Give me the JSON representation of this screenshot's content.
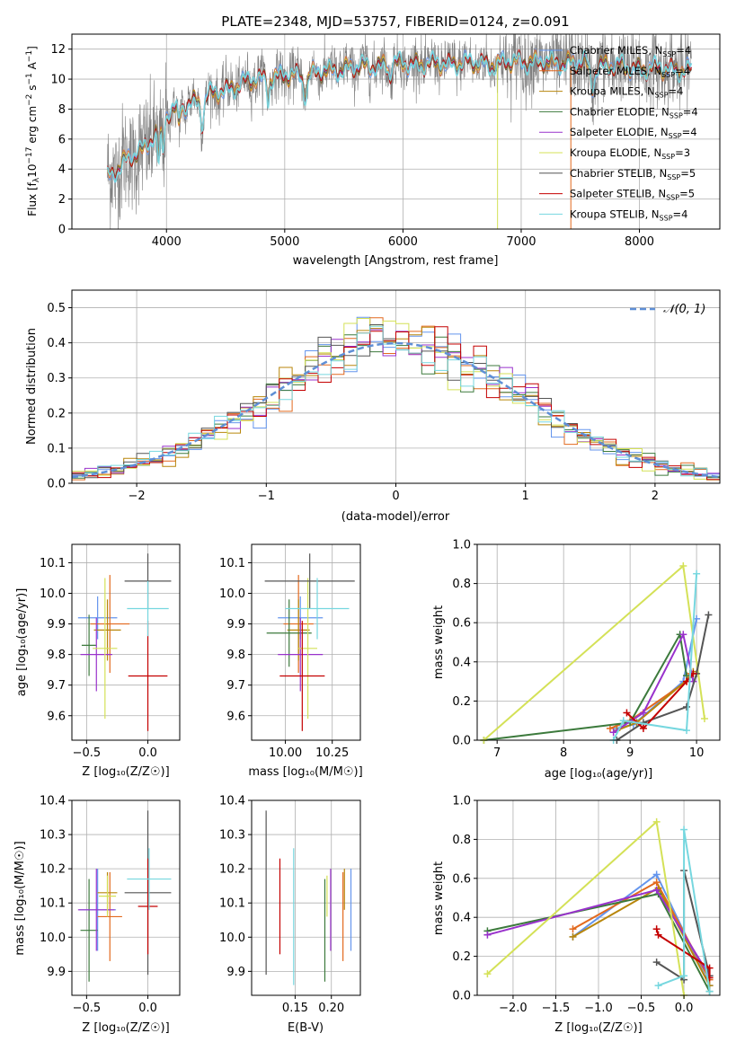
{
  "colors": [
    "#6495ed",
    "#e2691e",
    "#b8860b",
    "#3c7a3c",
    "#9932cc",
    "#d4e157",
    "#555555",
    "#c40000",
    "#76d7df"
  ],
  "gauss_color": "#5f8fd6",
  "chart_data": [
    {
      "id": "spectrum",
      "type": "line",
      "title": "PLATE=2348, MJD=53757, FIBERID=0124, z=0.091",
      "xlabel": "wavelength [Angstrom, rest frame]",
      "ylabel_parts": [
        "Flux [f",
        "λ",
        "10",
        "−17",
        " erg cm",
        "−2",
        " s",
        "−1",
        " A",
        "−1",
        "]"
      ],
      "xlim": [
        3200,
        8680
      ],
      "ylim": [
        0,
        13
      ],
      "xticks": [
        4000,
        5000,
        6000,
        7000,
        8000
      ],
      "yticks": [
        0,
        2,
        4,
        6,
        8,
        10,
        12
      ],
      "continuum": [
        [
          3500,
          3.4
        ],
        [
          3650,
          4.6
        ],
        [
          3800,
          5.2
        ],
        [
          4000,
          7.6
        ],
        [
          4250,
          8.6
        ],
        [
          4500,
          9.3
        ],
        [
          4750,
          10.0
        ],
        [
          5000,
          10.2
        ],
        [
          5250,
          10.4
        ],
        [
          5500,
          10.7
        ],
        [
          5750,
          10.9
        ],
        [
          6000,
          11.0
        ],
        [
          6250,
          11.0
        ],
        [
          6500,
          11.1
        ],
        [
          6750,
          11.0
        ],
        [
          7000,
          11.2
        ],
        [
          7250,
          11.1
        ],
        [
          7500,
          11.1
        ],
        [
          7750,
          10.9
        ],
        [
          8000,
          10.7
        ],
        [
          8250,
          10.7
        ],
        [
          8440,
          10.6
        ]
      ],
      "legend": [
        {
          "name": "Chabrier MILES",
          "nssp": "4"
        },
        {
          "name": "Salpeter MILES",
          "nssp": "4"
        },
        {
          "name": "Kroupa MILES",
          "nssp": "4"
        },
        {
          "name": "Chabrier ELODIE",
          "nssp": "4"
        },
        {
          "name": "Salpeter ELODIE",
          "nssp": "4"
        },
        {
          "name": "Kroupa ELODIE",
          "nssp": "3"
        },
        {
          "name": "Chabrier STELIB",
          "nssp": "5"
        },
        {
          "name": "Salpeter STELIB",
          "nssp": "5"
        },
        {
          "name": "Kroupa STELIB",
          "nssp": "4"
        }
      ]
    },
    {
      "id": "residuals",
      "type": "histogram",
      "xlabel": "(data-model)/error",
      "ylabel": "Normed distribution",
      "xlim": [
        -2.5,
        2.5
      ],
      "ylim": [
        0,
        0.55
      ],
      "xticks": [
        -2,
        -1,
        0,
        1,
        2
      ],
      "yticks": [
        0.0,
        0.1,
        0.2,
        0.3,
        0.4,
        0.5
      ],
      "bin_width": 0.1,
      "legend": "𝒩(0, 1)"
    },
    {
      "id": "z_age",
      "type": "errorbar",
      "xlabel": "Z [log₁₀(Z/Z☉)]",
      "ylabel": "age  [log₁₀(age/yr)]",
      "xlim": [
        -0.62,
        0.26
      ],
      "ylim": [
        9.52,
        10.16
      ],
      "xticks": [
        -0.5,
        0.0
      ],
      "yticks": [
        9.6,
        9.7,
        9.8,
        9.9,
        10.0,
        10.1
      ],
      "points": [
        {
          "x": -0.41,
          "xerr": 0.16,
          "y": 9.92,
          "yerr": 0.07
        },
        {
          "x": -0.31,
          "xerr": 0.16,
          "y": 9.9,
          "yerr": 0.16
        },
        {
          "x": -0.33,
          "xerr": 0.11,
          "y": 9.88,
          "yerr": 0.1
        },
        {
          "x": -0.48,
          "xerr": 0.06,
          "y": 9.83,
          "yerr": 0.1
        },
        {
          "x": -0.42,
          "xerr": 0.13,
          "y": 9.8,
          "yerr": 0.12
        },
        {
          "x": -0.35,
          "xerr": 0.1,
          "y": 9.82,
          "yerr": 0.23
        },
        {
          "x": 0.0,
          "xerr": 0.19,
          "y": 10.04,
          "yerr": 0.09
        },
        {
          "x": 0.0,
          "xerr": 0.16,
          "y": 9.73,
          "yerr": 0.18
        },
        {
          "x": 0.0,
          "xerr": 0.17,
          "y": 9.95,
          "yerr": 0.09
        }
      ]
    },
    {
      "id": "mass_age",
      "type": "errorbar",
      "xlabel": "mass [log₁₀(M/M☉)]",
      "ylabel": "",
      "xlim": [
        9.82,
        10.4
      ],
      "ylim": [
        9.52,
        10.16
      ],
      "xticks": [
        10.0,
        10.25
      ],
      "yticks": [
        9.6,
        9.7,
        9.8,
        9.9,
        10.0,
        10.1
      ],
      "points": [
        {
          "x": 10.08,
          "xerr": 0.12,
          "y": 9.92,
          "yerr": 0.07
        },
        {
          "x": 10.07,
          "xerr": 0.08,
          "y": 9.9,
          "yerr": 0.16
        },
        {
          "x": 10.07,
          "xerr": 0.06,
          "y": 9.88,
          "yerr": 0.1
        },
        {
          "x": 10.02,
          "xerr": 0.12,
          "y": 9.87,
          "yerr": 0.11
        },
        {
          "x": 10.08,
          "xerr": 0.12,
          "y": 9.8,
          "yerr": 0.12
        },
        {
          "x": 10.12,
          "xerr": 0.05,
          "y": 9.82,
          "yerr": 0.23
        },
        {
          "x": 10.13,
          "xerr": 0.24,
          "y": 10.04,
          "yerr": 0.09
        },
        {
          "x": 10.09,
          "xerr": 0.12,
          "y": 9.73,
          "yerr": 0.18
        },
        {
          "x": 10.17,
          "xerr": 0.17,
          "y": 9.95,
          "yerr": 0.1
        }
      ]
    },
    {
      "id": "age_weight",
      "type": "line",
      "xlabel": "age  [log₁₀(age/yr)]",
      "ylabel": "mass weight",
      "xlim": [
        6.7,
        10.35
      ],
      "ylim": [
        0,
        1
      ],
      "xticks": [
        7,
        8,
        9,
        10
      ],
      "yticks": [
        0.0,
        0.2,
        0.4,
        0.6,
        0.8,
        1.0
      ],
      "series": [
        {
          "x": [
            8.8,
            9.05,
            9.8,
            10.0
          ],
          "y": [
            0.06,
            0.08,
            0.3,
            0.62
          ]
        },
        {
          "x": [
            8.7,
            9.0,
            9.85,
            9.9
          ],
          "y": [
            0.06,
            0.1,
            0.3,
            0.34
          ]
        },
        {
          "x": [
            8.8,
            9.1,
            9.9,
            9.95
          ],
          "y": [
            0.05,
            0.09,
            0.32,
            0.35
          ]
        },
        {
          "x": [
            6.8,
            9.0,
            9.75,
            9.85
          ],
          "y": [
            0.0,
            0.09,
            0.54,
            0.33
          ]
        },
        {
          "x": [
            8.75,
            9.2,
            9.8,
            9.95
          ],
          "y": [
            0.04,
            0.14,
            0.54,
            0.3
          ]
        },
        {
          "x": [
            6.8,
            9.8,
            10.12
          ],
          "y": [
            0.0,
            0.89,
            0.11
          ]
        },
        {
          "x": [
            8.8,
            9.2,
            9.85,
            10.0,
            10.18
          ],
          "y": [
            0.0,
            0.09,
            0.17,
            0.34,
            0.64
          ]
        },
        {
          "x": [
            8.95,
            9.2,
            9.85,
            9.95
          ],
          "y": [
            0.14,
            0.06,
            0.3,
            0.34
          ]
        },
        {
          "x": [
            8.75,
            8.9,
            9.85,
            10.0
          ],
          "y": [
            0.0,
            0.1,
            0.05,
            0.85
          ]
        }
      ]
    },
    {
      "id": "z_mass",
      "type": "errorbar",
      "xlabel": "Z [log₁₀(Z/Z☉)]",
      "ylabel": "mass [log₁₀(M/M☉)]",
      "xlim": [
        -0.62,
        0.26
      ],
      "ylim": [
        9.83,
        10.4
      ],
      "xticks": [
        -0.5,
        0.0
      ],
      "yticks": [
        9.9,
        10.0,
        10.1,
        10.2,
        10.3,
        10.4
      ],
      "points": [
        {
          "x": -0.41,
          "xerr": 0.15,
          "y": 10.08,
          "yerr": 0.12
        },
        {
          "x": -0.31,
          "xerr": 0.1,
          "y": 10.06,
          "yerr": 0.13
        },
        {
          "x": -0.33,
          "xerr": 0.08,
          "y": 10.13,
          "yerr": 0.06
        },
        {
          "x": -0.48,
          "xerr": 0.07,
          "y": 10.02,
          "yerr": 0.15
        },
        {
          "x": -0.42,
          "xerr": 0.15,
          "y": 10.08,
          "yerr": 0.12
        },
        {
          "x": -0.33,
          "xerr": 0.07,
          "y": 10.12,
          "yerr": 0.06
        },
        {
          "x": 0.0,
          "xerr": 0.19,
          "y": 10.13,
          "yerr": 0.24
        },
        {
          "x": 0.0,
          "xerr": 0.08,
          "y": 10.09,
          "yerr": 0.14
        },
        {
          "x": 0.01,
          "xerr": 0.18,
          "y": 10.17,
          "yerr": 0.09
        }
      ]
    },
    {
      "id": "ebv_mass",
      "type": "errorbar",
      "xlabel": "E(B-V)",
      "ylabel": "",
      "xlim": [
        0.09,
        0.24
      ],
      "ylim": [
        9.83,
        10.4
      ],
      "xticks": [
        0.15,
        0.2
      ],
      "yticks": [
        9.9,
        10.0,
        10.1,
        10.2,
        10.3,
        10.4
      ],
      "points": [
        {
          "x": 0.227,
          "xerr": 0,
          "y": 10.08,
          "yerr": 0.12
        },
        {
          "x": 0.216,
          "xerr": 0,
          "y": 10.06,
          "yerr": 0.13
        },
        {
          "x": 0.218,
          "xerr": 0,
          "y": 10.14,
          "yerr": 0.06
        },
        {
          "x": 0.191,
          "xerr": 0,
          "y": 10.02,
          "yerr": 0.15
        },
        {
          "x": 0.199,
          "xerr": 0,
          "y": 10.08,
          "yerr": 0.12
        },
        {
          "x": 0.194,
          "xerr": 0,
          "y": 10.12,
          "yerr": 0.06
        },
        {
          "x": 0.11,
          "xerr": 0,
          "y": 10.13,
          "yerr": 0.24
        },
        {
          "x": 0.129,
          "xerr": 0,
          "y": 10.09,
          "yerr": 0.14
        },
        {
          "x": 0.148,
          "xerr": 0,
          "y": 10.06,
          "yerr": 0.2
        }
      ]
    },
    {
      "id": "z_weight",
      "type": "line",
      "xlabel": "Z [log₁₀(Z/Z☉)]",
      "ylabel": "mass weight",
      "xlim": [
        -2.42,
        0.42
      ],
      "ylim": [
        0,
        1
      ],
      "xticks": [
        -2.0,
        -1.5,
        -1.0,
        -0.5,
        0.0
      ],
      "yticks": [
        0.0,
        0.2,
        0.4,
        0.6,
        0.8,
        1.0
      ],
      "series": [
        {
          "x": [
            -1.3,
            -0.32,
            0.3
          ],
          "y": [
            0.3,
            0.62,
            0.05
          ]
        },
        {
          "x": [
            -1.3,
            -0.32,
            0.3
          ],
          "y": [
            0.34,
            0.58,
            0.08
          ]
        },
        {
          "x": [
            -1.3,
            -0.3,
            0.3
          ],
          "y": [
            0.3,
            0.55,
            0.05
          ]
        },
        {
          "x": [
            -2.3,
            -0.3,
            0.3
          ],
          "y": [
            0.33,
            0.52,
            0.02
          ]
        },
        {
          "x": [
            -2.3,
            -0.32,
            0.3
          ],
          "y": [
            0.31,
            0.54,
            0.1
          ]
        },
        {
          "x": [
            -2.3,
            -0.32,
            0.0
          ],
          "y": [
            0.11,
            0.89,
            0.0
          ]
        },
        {
          "x": [
            -0.32,
            0.0,
            0.0,
            0.3
          ],
          "y": [
            0.17,
            0.08,
            0.64,
            0.1
          ]
        },
        {
          "x": [
            -0.32,
            -0.3,
            0.3,
            0.3
          ],
          "y": [
            0.34,
            0.31,
            0.14,
            0.09
          ]
        },
        {
          "x": [
            -0.3,
            0.0,
            0.0,
            0.3
          ],
          "y": [
            0.05,
            0.1,
            0.85,
            0.02
          ]
        }
      ]
    }
  ]
}
